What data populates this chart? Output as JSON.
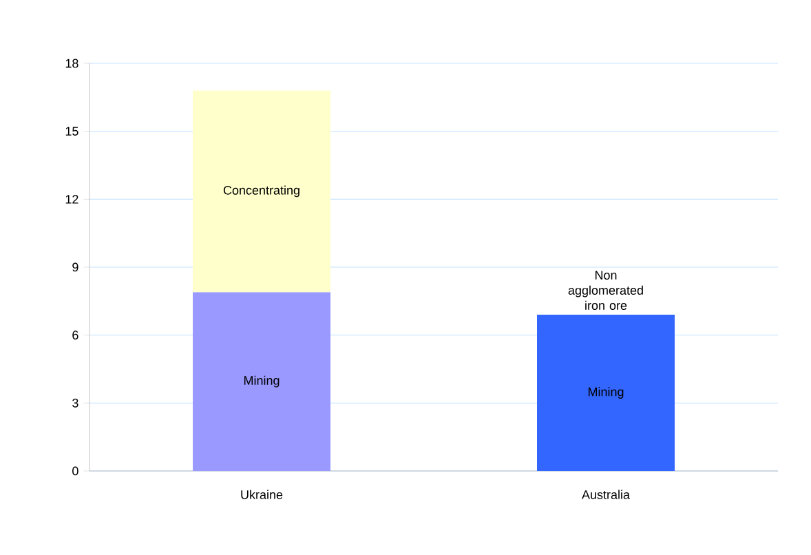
{
  "chart_data": {
    "type": "bar",
    "stacked": true,
    "categories": [
      "Ukraine",
      "Australia"
    ],
    "series": [
      {
        "name": "Mining",
        "colors": [
          "#9999ff",
          "#3366ff"
        ],
        "values": [
          7.9,
          6.9
        ]
      },
      {
        "name": "Concentrating",
        "colors": [
          "#ffffcc",
          null
        ],
        "values": [
          8.9,
          null
        ]
      }
    ],
    "annotations": [
      {
        "text": "Non agglomerated iron ore",
        "x": "Australia",
        "y": 6.9
      }
    ],
    "ylim": [
      0,
      18
    ],
    "yticks": [
      0,
      3,
      6,
      9,
      12,
      15,
      18
    ],
    "grid": "y"
  }
}
